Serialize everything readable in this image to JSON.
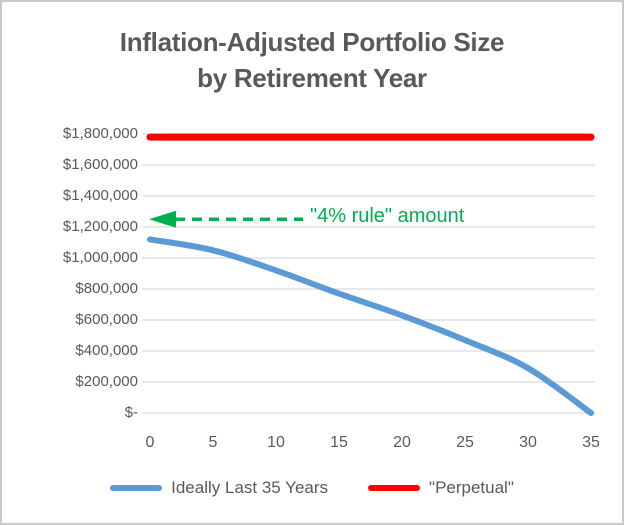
{
  "chart_data": {
    "type": "line",
    "title": "Inflation-Adjusted Portfolio Size by Retirement Year",
    "title_lines": [
      "Inflation-Adjusted Portfolio Size",
      "by Retirement Year"
    ],
    "xlabel": "",
    "ylabel": "",
    "xlim": [
      0,
      35
    ],
    "ylim": [
      0,
      1800000
    ],
    "x_ticks": [
      0,
      5,
      10,
      15,
      20,
      25,
      30,
      35
    ],
    "y_ticks": [
      {
        "value": 1800000,
        "label": "$1,800,000"
      },
      {
        "value": 1600000,
        "label": "$1,600,000"
      },
      {
        "value": 1400000,
        "label": "$1,400,000"
      },
      {
        "value": 1200000,
        "label": "$1,200,000"
      },
      {
        "value": 1000000,
        "label": "$1,000,000"
      },
      {
        "value": 800000,
        "label": "$800,000"
      },
      {
        "value": 600000,
        "label": "$600,000"
      },
      {
        "value": 400000,
        "label": "$400,000"
      },
      {
        "value": 200000,
        "label": "$200,000"
      },
      {
        "value": 0,
        "label": "$-"
      }
    ],
    "grid": true,
    "legend_position": "bottom",
    "series": [
      {
        "name": "Ideally Last 35 Years",
        "color": "#5B9BD5",
        "stroke_width": 6,
        "smooth": true,
        "x": [
          0,
          5,
          10,
          15,
          20,
          25,
          30,
          35
        ],
        "values": [
          1120000,
          1050000,
          920000,
          770000,
          630000,
          470000,
          290000,
          0
        ]
      },
      {
        "name": "\"Perpetual\"",
        "color": "#FF0000",
        "stroke_width": 7,
        "smooth": false,
        "x": [
          0,
          35
        ],
        "values": [
          1780000,
          1780000
        ]
      }
    ],
    "annotation": {
      "text": "\"4% rule\" amount",
      "value": 1250000,
      "color": "#00B050",
      "style": "dashed-arrow-left"
    }
  },
  "colors": {
    "title_text": "#595959",
    "axis_text": "#595959",
    "gridline": "#D9D9D9",
    "background": "#FFFFFF",
    "border": "#C9C9C9"
  }
}
